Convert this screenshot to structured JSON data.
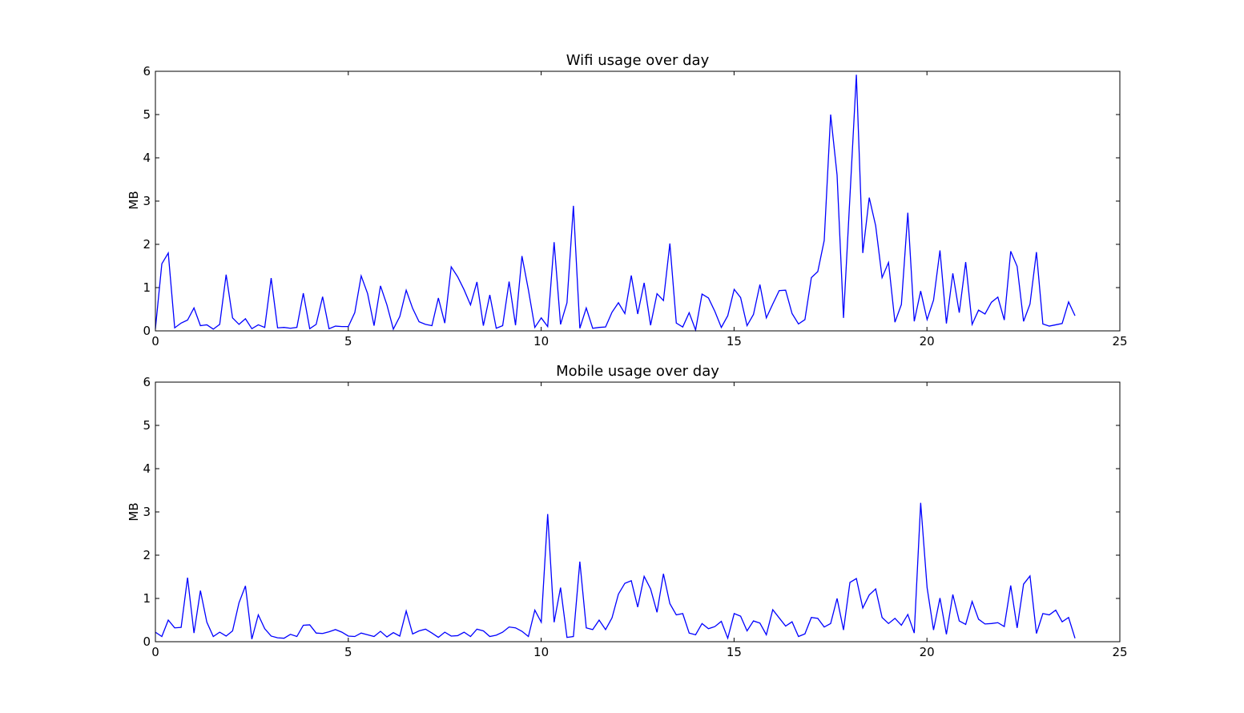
{
  "chart_data": [
    {
      "type": "line",
      "title": "Wifi usage over day",
      "xlabel": "",
      "ylabel": "MB",
      "xlim": [
        0,
        25
      ],
      "ylim": [
        0,
        6
      ],
      "xticks": [
        "0",
        "5",
        "10",
        "15",
        "20",
        "25"
      ],
      "yticks": [
        "0",
        "1",
        "2",
        "3",
        "4",
        "5",
        "6"
      ],
      "grid": false,
      "line_color": "#0000ff",
      "x_step_hours": 0.1667,
      "values": [
        0.05,
        1.55,
        1.8,
        0.07,
        0.18,
        0.25,
        0.53,
        0.12,
        0.14,
        0.04,
        0.15,
        1.3,
        0.3,
        0.15,
        0.28,
        0.05,
        0.14,
        0.08,
        1.22,
        0.07,
        0.08,
        0.06,
        0.08,
        0.87,
        0.05,
        0.15,
        0.79,
        0.05,
        0.11,
        0.1,
        0.1,
        0.42,
        1.27,
        0.86,
        0.12,
        1.04,
        0.6,
        0.04,
        0.33,
        0.94,
        0.52,
        0.21,
        0.15,
        0.12,
        0.76,
        0.18,
        1.48,
        1.25,
        0.95,
        0.6,
        1.13,
        0.12,
        0.83,
        0.06,
        0.12,
        1.14,
        0.13,
        1.73,
        0.95,
        0.08,
        0.3,
        0.1,
        2.05,
        0.15,
        0.65,
        2.89,
        0.06,
        0.53,
        0.06,
        0.08,
        0.09,
        0.43,
        0.65,
        0.4,
        1.28,
        0.39,
        1.11,
        0.13,
        0.86,
        0.7,
        2.02,
        0.18,
        0.09,
        0.42,
        0.02,
        0.85,
        0.76,
        0.45,
        0.08,
        0.35,
        0.96,
        0.77,
        0.12,
        0.38,
        1.07,
        0.3,
        0.62,
        0.93,
        0.94,
        0.4,
        0.16,
        0.26,
        1.23,
        1.37,
        2.09,
        5.0,
        3.6,
        0.3,
        3.1,
        5.92,
        1.8,
        3.08,
        2.43,
        1.23,
        1.58,
        0.2,
        0.61,
        2.73,
        0.22,
        0.92,
        0.26,
        0.71,
        1.86,
        0.17,
        1.33,
        0.42,
        1.59,
        0.15,
        0.48,
        0.39,
        0.66,
        0.78,
        0.25,
        1.84,
        1.49,
        0.22,
        0.62,
        1.82,
        0.16,
        0.11,
        0.14,
        0.17,
        0.67,
        0.35
      ]
    },
    {
      "type": "line",
      "title": "Mobile usage over day",
      "xlabel": "",
      "ylabel": "MB",
      "xlim": [
        0,
        25
      ],
      "ylim": [
        0,
        6
      ],
      "xticks": [
        "0",
        "5",
        "10",
        "15",
        "20",
        "25"
      ],
      "yticks": [
        "0",
        "1",
        "2",
        "3",
        "4",
        "5",
        "6"
      ],
      "grid": false,
      "line_color": "#0000ff",
      "x_step_hours": 0.1667,
      "values": [
        0.22,
        0.12,
        0.5,
        0.32,
        0.33,
        1.48,
        0.2,
        1.18,
        0.45,
        0.12,
        0.22,
        0.13,
        0.25,
        0.9,
        1.29,
        0.06,
        0.62,
        0.3,
        0.13,
        0.09,
        0.08,
        0.17,
        0.12,
        0.38,
        0.39,
        0.2,
        0.19,
        0.23,
        0.28,
        0.22,
        0.13,
        0.12,
        0.2,
        0.16,
        0.12,
        0.24,
        0.11,
        0.21,
        0.13,
        0.71,
        0.18,
        0.25,
        0.29,
        0.2,
        0.1,
        0.22,
        0.13,
        0.14,
        0.22,
        0.12,
        0.29,
        0.25,
        0.12,
        0.15,
        0.22,
        0.34,
        0.32,
        0.24,
        0.12,
        0.73,
        0.45,
        2.95,
        0.45,
        1.25,
        0.1,
        0.12,
        1.85,
        0.32,
        0.28,
        0.5,
        0.28,
        0.55,
        1.1,
        1.35,
        1.41,
        0.8,
        1.51,
        1.22,
        0.68,
        1.57,
        0.88,
        0.62,
        0.65,
        0.2,
        0.16,
        0.42,
        0.3,
        0.35,
        0.47,
        0.08,
        0.65,
        0.59,
        0.25,
        0.48,
        0.43,
        0.16,
        0.74,
        0.55,
        0.36,
        0.46,
        0.12,
        0.18,
        0.56,
        0.54,
        0.34,
        0.42,
        1.0,
        0.27,
        1.37,
        1.46,
        0.78,
        1.08,
        1.22,
        0.56,
        0.42,
        0.54,
        0.38,
        0.63,
        0.2,
        3.21,
        1.25,
        0.27,
        1.01,
        0.17,
        1.09,
        0.48,
        0.4,
        0.93,
        0.52,
        0.41,
        0.42,
        0.44,
        0.35,
        1.3,
        0.32,
        1.33,
        1.52,
        0.19,
        0.65,
        0.62,
        0.73,
        0.46,
        0.56,
        0.08
      ]
    }
  ]
}
